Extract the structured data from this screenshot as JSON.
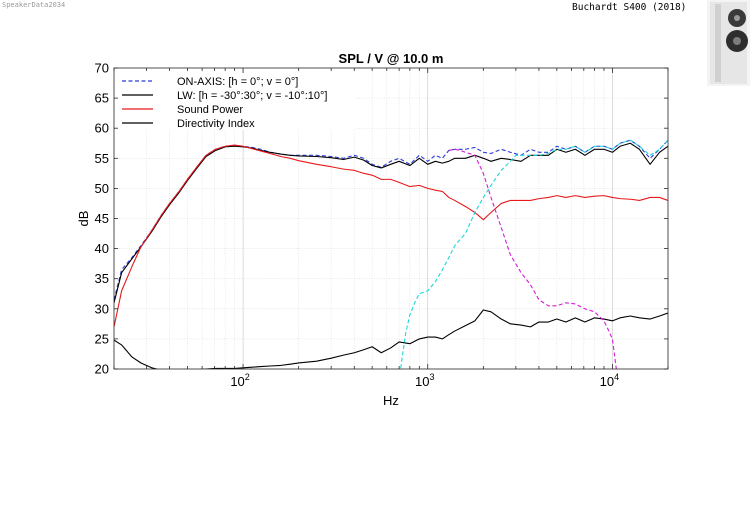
{
  "watermark": "SpeakerData2034",
  "model": "Buchardt S400 (2018)",
  "product_image": "speaker-photo-icon",
  "chart_data": {
    "type": "line",
    "title": "SPL / V @ 10.0 m",
    "xlabel": "Hz",
    "ylabel": "dB",
    "xscale": "log",
    "xlim": [
      20,
      20000
    ],
    "ylim": [
      20,
      70
    ],
    "yticks": [
      20,
      25,
      30,
      35,
      40,
      45,
      50,
      55,
      60,
      65,
      70
    ],
    "xticks": [
      {
        "value": 100,
        "base": "10",
        "exp": "2"
      },
      {
        "value": 1000,
        "base": "10",
        "exp": "3"
      },
      {
        "value": 10000,
        "base": "10",
        "exp": "4"
      }
    ],
    "grid": true,
    "legend_position": "top-left",
    "series": [
      {
        "name": "ON-AXIS: [h = 0°; v = 0°]",
        "color": "#2b3bd8",
        "dash": "dashed",
        "x": [
          20,
          22,
          25,
          28,
          32,
          36,
          40,
          45,
          50,
          56,
          63,
          71,
          80,
          90,
          100,
          112,
          125,
          140,
          160,
          180,
          200,
          250,
          300,
          350,
          400,
          450,
          500,
          560,
          630,
          700,
          800,
          900,
          1000,
          1100,
          1200,
          1300,
          1400,
          1600,
          1800,
          2000,
          2200,
          2500,
          2800,
          3200,
          3600,
          4000,
          4500,
          5000,
          5600,
          6300,
          7100,
          8000,
          9000,
          10000,
          11000,
          12500,
          14000,
          16000,
          18000,
          20000
        ],
        "y": [
          31.5,
          36.5,
          38.5,
          40.5,
          43,
          45.5,
          47.5,
          49.5,
          51.5,
          53.5,
          55.5,
          56.5,
          57,
          57.1,
          57,
          56.8,
          56.5,
          56,
          55.7,
          55.5,
          55.5,
          55.5,
          55.3,
          55,
          55.5,
          55,
          54,
          53.5,
          54.5,
          55,
          54,
          55.5,
          54.5,
          55.5,
          55,
          56.3,
          56.5,
          56.5,
          56.8,
          56,
          55.8,
          56.5,
          56,
          55.5,
          56.5,
          56,
          56,
          57,
          56.5,
          57,
          56,
          57,
          57,
          56.5,
          57.5,
          58,
          57,
          55,
          56.5,
          58
        ]
      },
      {
        "name": "LW: [h = -30°:30°; v = -10°:10°]",
        "color": "#000000",
        "dash": "solid",
        "x": [
          20,
          22,
          25,
          28,
          32,
          36,
          40,
          45,
          50,
          56,
          63,
          71,
          80,
          90,
          100,
          112,
          125,
          140,
          160,
          180,
          200,
          250,
          300,
          350,
          400,
          450,
          500,
          560,
          630,
          700,
          800,
          900,
          1000,
          1100,
          1200,
          1300,
          1400,
          1600,
          1800,
          2000,
          2200,
          2500,
          2800,
          3200,
          3600,
          4000,
          4500,
          5000,
          5600,
          6300,
          7100,
          8000,
          9000,
          10000,
          11000,
          12500,
          14000,
          16000,
          18000,
          20000
        ],
        "y": [
          31,
          36,
          38.3,
          40.3,
          42.8,
          45.3,
          47.3,
          49.3,
          51.3,
          53.3,
          55.3,
          56.3,
          56.9,
          57,
          56.9,
          56.7,
          56.3,
          56,
          55.7,
          55.5,
          55.4,
          55.3,
          55.1,
          54.8,
          55.2,
          54.7,
          53.8,
          53.4,
          54,
          54.5,
          53.8,
          55,
          54,
          54.5,
          54.2,
          54.5,
          55,
          55,
          55.5,
          55,
          54.5,
          55,
          54.8,
          54.5,
          55.5,
          55.5,
          55.5,
          56.5,
          56,
          56.5,
          55.5,
          56.5,
          56.5,
          56,
          57,
          57.5,
          56.5,
          54,
          56,
          57
        ]
      },
      {
        "name": "Sound Power",
        "color": "#e8191c",
        "dash": "solid",
        "x": [
          20,
          22,
          25,
          28,
          32,
          36,
          40,
          45,
          50,
          56,
          63,
          71,
          80,
          90,
          100,
          112,
          125,
          140,
          160,
          180,
          200,
          250,
          300,
          350,
          400,
          450,
          500,
          560,
          630,
          700,
          800,
          900,
          1000,
          1100,
          1200,
          1300,
          1400,
          1600,
          1800,
          2000,
          2200,
          2500,
          2800,
          3200,
          3600,
          4000,
          4500,
          5000,
          5600,
          6300,
          7100,
          8000,
          9000,
          10000,
          11000,
          12500,
          14000,
          16000,
          18000,
          20000
        ],
        "y": [
          27,
          33,
          37,
          40.3,
          43,
          45.5,
          47.5,
          49.5,
          51.5,
          53.5,
          55.5,
          56.5,
          57,
          57.2,
          57,
          56.6,
          56.2,
          55.8,
          55.3,
          55,
          54.6,
          54,
          53.6,
          53.2,
          53,
          52.5,
          52.2,
          51.5,
          51.5,
          51,
          50.3,
          50.5,
          50,
          49.7,
          49.5,
          48.5,
          48,
          47,
          46,
          44.8,
          46,
          47.5,
          48,
          48,
          48,
          48.3,
          48.5,
          48.8,
          48.5,
          48.8,
          48.5,
          48.7,
          48.8,
          48.5,
          48.3,
          48.2,
          48,
          48.5,
          48.5,
          48
        ]
      },
      {
        "name": "Directivity Index",
        "color": "#000000",
        "dash": "solid",
        "x": [
          20,
          22,
          25,
          28,
          32,
          36,
          40,
          45,
          50,
          56,
          63,
          71,
          80,
          90,
          100,
          112,
          125,
          140,
          160,
          180,
          200,
          250,
          300,
          350,
          400,
          450,
          500,
          560,
          630,
          700,
          800,
          900,
          1000,
          1100,
          1200,
          1300,
          1400,
          1600,
          1800,
          2000,
          2200,
          2500,
          2800,
          3200,
          3600,
          4000,
          4500,
          5000,
          5600,
          6300,
          7100,
          8000,
          9000,
          10000,
          11000,
          12500,
          14000,
          16000,
          18000,
          20000
        ],
        "y": [
          24.8,
          24,
          22,
          21,
          20.2,
          19.8,
          19.6,
          19.6,
          19.7,
          19.9,
          20,
          20.1,
          20.1,
          20.1,
          20.2,
          20.3,
          20.4,
          20.5,
          20.6,
          20.8,
          21,
          21.3,
          21.8,
          22.3,
          22.7,
          23.2,
          23.7,
          22.7,
          23.5,
          24.5,
          24.2,
          25,
          25.3,
          25.3,
          25,
          25.7,
          26.3,
          27.2,
          28,
          29.8,
          29.5,
          28.3,
          27.5,
          27.3,
          27,
          27.8,
          27.8,
          28.3,
          27.8,
          28.5,
          27.8,
          28.5,
          28.3,
          28,
          28.5,
          28.8,
          28.5,
          28.3,
          28.8,
          29.3
        ]
      },
      {
        "name": "",
        "color": "#19d8d8",
        "dash": "dashed",
        "x": [
          700,
          720,
          760,
          800,
          850,
          900,
          1000,
          1100,
          1200,
          1300,
          1400,
          1600,
          1800,
          2000,
          2200,
          2500,
          2800,
          3000,
          3200,
          3600,
          4000,
          4500,
          5000,
          5600,
          6300,
          7100,
          8000,
          9000,
          10000,
          11000,
          12500,
          14000,
          16000,
          18000,
          20000
        ],
        "y": [
          18,
          21,
          26,
          29,
          31,
          32.5,
          33,
          34.5,
          36.5,
          38.5,
          40.5,
          42.5,
          46,
          48.5,
          50.5,
          53,
          54.5,
          55.5,
          55.5,
          55.5,
          55.5,
          55.8,
          56.5,
          56.5,
          57,
          56,
          57,
          57,
          56.5,
          57.5,
          58,
          57,
          55.5,
          56.5,
          58
        ]
      },
      {
        "name": "",
        "color": "#d81bd8",
        "dash": "dashed",
        "x": [
          1300,
          1400,
          1500,
          1600,
          1800,
          2000,
          2200,
          2500,
          2800,
          3200,
          3600,
          4000,
          4500,
          5000,
          5600,
          6300,
          7100,
          8000,
          9000,
          9500,
          10000,
          10300,
          10600
        ],
        "y": [
          56.3,
          56.5,
          56.3,
          56,
          55.5,
          52.5,
          48.5,
          43.5,
          39,
          36,
          34,
          31.5,
          30.5,
          30.5,
          31,
          30.8,
          30,
          29.5,
          28,
          26.5,
          25,
          22,
          19
        ]
      }
    ]
  }
}
